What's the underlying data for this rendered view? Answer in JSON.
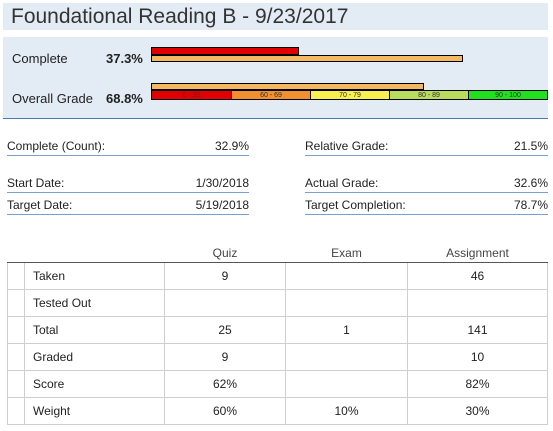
{
  "title": "Foundational Reading B - 9/23/2017",
  "progress": {
    "complete": {
      "label": "Complete",
      "value": "37.3%",
      "fraction": 0.373,
      "target_fraction": 0.787
    },
    "overall": {
      "label": "Overall Grade",
      "value": "68.8%",
      "fraction": 0.688,
      "bands": [
        {
          "label": "0 - 59",
          "color": "#e00000"
        },
        {
          "label": "60 - 69",
          "color": "#f09030"
        },
        {
          "label": "70 - 79",
          "color": "#f8f050"
        },
        {
          "label": "80 - 89",
          "color": "#b8dc60"
        },
        {
          "label": "90 - 100",
          "color": "#20e020"
        }
      ]
    },
    "colors": {
      "current": "#e00000",
      "target": "#f4b860"
    }
  },
  "stats": {
    "complete_count": {
      "label": "Complete (Count):",
      "value": "32.9%"
    },
    "relative_grade": {
      "label": "Relative Grade:",
      "value": "21.5%"
    },
    "start_date": {
      "label": "Start Date:",
      "value": "1/30/2018"
    },
    "actual_grade": {
      "label": "Actual Grade:",
      "value": "32.6%"
    },
    "target_date": {
      "label": "Target Date:",
      "value": "5/19/2018"
    },
    "target_completion": {
      "label": "Target Completion:",
      "value": "78.7%"
    }
  },
  "table": {
    "headers": [
      "Quiz",
      "Exam",
      "Assignment"
    ],
    "rows": [
      {
        "label": "Taken",
        "cells": [
          "9",
          "",
          "46"
        ]
      },
      {
        "label": "Tested Out",
        "cells": [
          "",
          "",
          ""
        ]
      },
      {
        "label": "Total",
        "cells": [
          "25",
          "1",
          "141"
        ]
      },
      {
        "label": "Graded",
        "cells": [
          "9",
          "",
          "10"
        ]
      },
      {
        "label": "Score",
        "cells": [
          "62%",
          "",
          "82%"
        ]
      },
      {
        "label": "Weight",
        "cells": [
          "60%",
          "10%",
          "30%"
        ]
      }
    ]
  }
}
